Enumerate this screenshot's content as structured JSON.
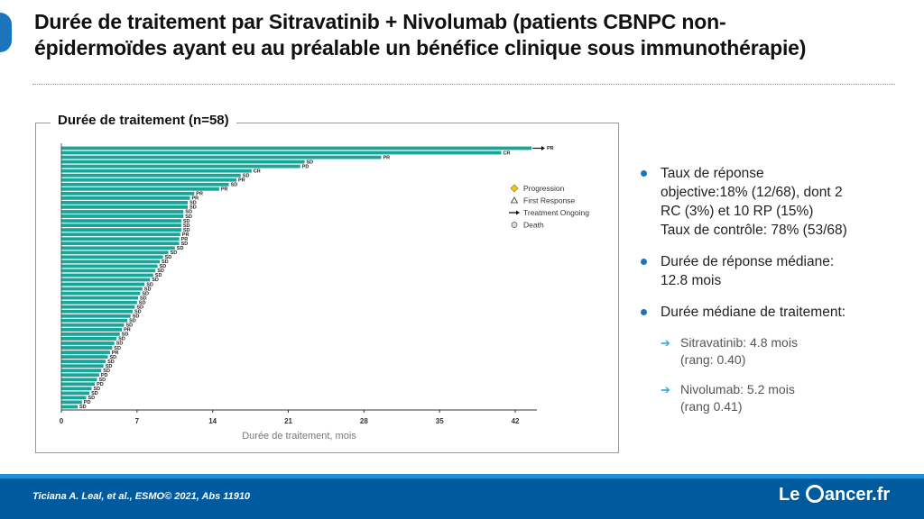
{
  "header": {
    "title_line1": "Durée de traitement par Sitravatinib + Nivolumab (patients CBNPC non-",
    "title_line2": "épidermoïdes ayant eu au préalable un bénéfice clinique sous immunothérapie)"
  },
  "colors": {
    "accent": "#1b75bc",
    "bar": "#1aa599",
    "footer": "#005a9e",
    "progression": "#f2c811"
  },
  "chart_title": "Durée de traitement (n=58)",
  "chart_data": {
    "type": "bar",
    "orientation": "horizontal",
    "title": "Durée de traitement (n=58)",
    "xlabel": "Durée de traitement, mois",
    "xlim": [
      0,
      44
    ],
    "xticks": [
      0,
      7,
      14,
      21,
      28,
      35,
      42
    ],
    "values": [
      43.5,
      40.7,
      29.6,
      22.5,
      22.1,
      17.6,
      16.6,
      16.2,
      15.5,
      14.6,
      12.3,
      11.9,
      11.7,
      11.7,
      11.3,
      11.3,
      11.1,
      11.1,
      11.1,
      11.0,
      10.9,
      10.9,
      10.5,
      9.9,
      9.4,
      9.1,
      8.9,
      8.7,
      8.5,
      8.2,
      7.7,
      7.5,
      7.3,
      7.1,
      7.0,
      6.8,
      6.6,
      6.4,
      6.1,
      5.8,
      5.6,
      5.4,
      5.1,
      4.9,
      4.7,
      4.5,
      4.3,
      4.1,
      3.9,
      3.7,
      3.5,
      3.3,
      3.1,
      2.8,
      2.6,
      2.3,
      1.9,
      1.5
    ],
    "labels": [
      "PR",
      "CR",
      "PR",
      "SD",
      "PD",
      "CR",
      "SD",
      "PR",
      "SD",
      "PR",
      "PR",
      "PR",
      "SD",
      "SD",
      "SD",
      "SD",
      "SD",
      "SD",
      "SD",
      "PR",
      "PR",
      "SD",
      "SD",
      "SD",
      "SD",
      "SD",
      "SD",
      "SD",
      "SD",
      "SD",
      "SD",
      "SD",
      "SD",
      "SD",
      "SD",
      "SD",
      "SD",
      "SD",
      "SD",
      "SD",
      "PR",
      "SD",
      "SD",
      "SD",
      "SD",
      "PR",
      "SD",
      "SD",
      "SD",
      "SD",
      "PD",
      "SD",
      "PD",
      "SD",
      "SD",
      "SD",
      "PD",
      "SD"
    ],
    "legend": [
      "Progression",
      "First Response",
      "Treatment Ongoing",
      "Death"
    ],
    "legend_position": "right"
  },
  "right_panel": {
    "b1_line1": "Taux de réponse",
    "b1_line2": "objective:18% (12/68), dont 2",
    "b1_line3": "RC (3%) et 10 RP (15%)",
    "b1_line4": "Taux de contrôle: 78% (53/68)",
    "b2_line1": "Durée de réponse médiane:",
    "b2_line2": "12.8 mois",
    "b3": "Durée médiane de traitement:",
    "s1_line1": "Sitravatinib: 4.8 mois",
    "s1_line2": "(rang: 0.40)",
    "s2_line1": "Nivolumab: 5.2 mois",
    "s2_line2": "(rang 0.41)"
  },
  "footer": {
    "citation": "Ticiana A. Leal, et al.,  ESMO© 2021, Abs 11910",
    "logo_le": "Le",
    "logo_rest": "ancer.fr"
  }
}
